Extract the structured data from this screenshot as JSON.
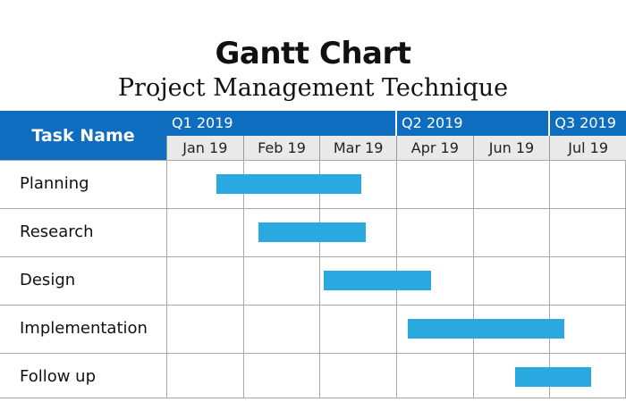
{
  "title": "Gantt Chart",
  "subtitle": "Project Management Technique",
  "header": {
    "task_name_label": "Task Name"
  },
  "colors": {
    "header_blue": "#0f6dc0",
    "bar_blue": "#29a9e0",
    "month_bg": "#e9e9e9"
  },
  "chart_data": {
    "type": "gantt",
    "title": "Gantt Chart",
    "subtitle": "Project Management Technique",
    "quarters": [
      "Q1 2019",
      "Q2 2019",
      "Q3 2019"
    ],
    "months": [
      "Jan 19",
      "Feb 19",
      "Mar 19",
      "Apr 19",
      "Jun 19",
      "Jul 19"
    ],
    "tasks": [
      {
        "name": "Planning",
        "start": 0.65,
        "end": 2.55
      },
      {
        "name": "Research",
        "start": 1.2,
        "end": 2.6
      },
      {
        "name": "Design",
        "start": 2.05,
        "end": 3.45
      },
      {
        "name": "Implementation",
        "start": 3.15,
        "end": 5.2
      },
      {
        "name": "Follow up",
        "start": 4.55,
        "end": 5.55
      }
    ]
  }
}
